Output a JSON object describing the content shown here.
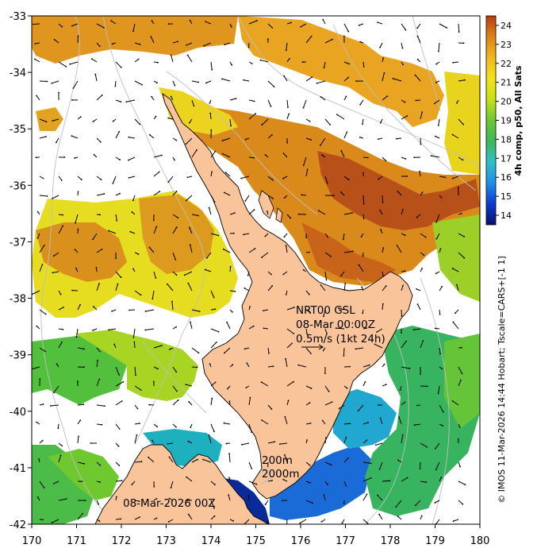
{
  "map": {
    "lon_range": [
      170,
      180
    ],
    "lat_range": [
      -42,
      -33
    ],
    "lon_ticks": [
      "170",
      "171",
      "172",
      "173",
      "174",
      "175",
      "176",
      "177",
      "178",
      "179",
      "180"
    ],
    "lat_ticks": [
      "-33",
      "-34",
      "-35",
      "-36",
      "-37",
      "-38",
      "-39",
      "-40",
      "-41",
      "-42"
    ],
    "land_color": "#f9c49a",
    "no_data_color": "#ffffff",
    "contour_color": "#bfbfbf"
  },
  "annotations": {
    "product": "NRT00 GSL",
    "time": "08-Mar 00:00Z",
    "vector_scale": "0.5m/s (1kt 24h)",
    "contour_200": "200m",
    "contour_2000": "2000m",
    "date_label": "08-Mar-2026 00Z"
  },
  "colorbar": {
    "title": "4h comp, p50, All Sats",
    "min": 13.5,
    "max": 24.5,
    "tick_labels": [
      "14",
      "15",
      "16",
      "17",
      "18",
      "19",
      "20",
      "21",
      "22",
      "23",
      "24"
    ],
    "colors": [
      "#08106e",
      "#0b3bd0",
      "#1c8fe8",
      "#2fc0c8",
      "#3cb85a",
      "#6cc830",
      "#c8e014",
      "#f2e21c",
      "#f2b81c",
      "#dc8414",
      "#bc3c10"
    ]
  },
  "credit": "© IMOS 11-Mar-2026 14:44 Hobart; Tscale=CARS+[-1 1]"
}
